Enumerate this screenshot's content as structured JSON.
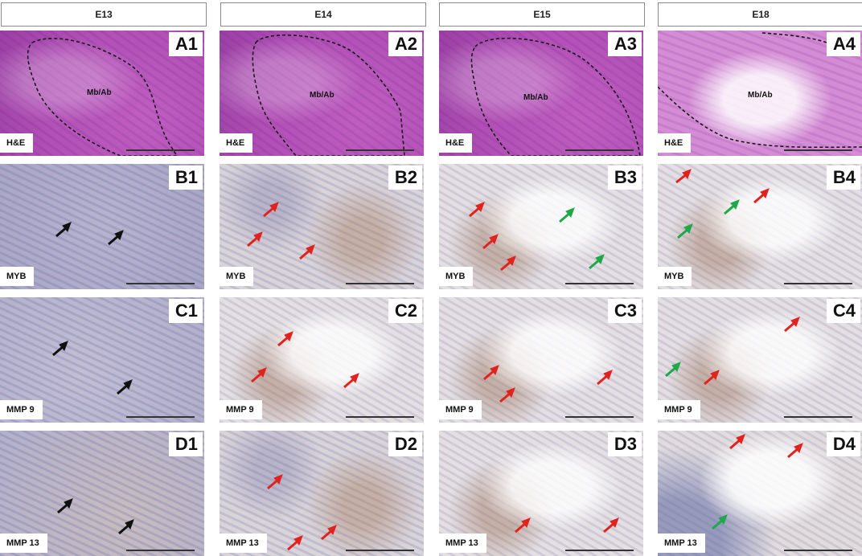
{
  "columns": [
    "E13",
    "E14",
    "E15",
    "E18"
  ],
  "rows": [
    {
      "stain": "H&E",
      "panels": [
        "A1",
        "A2",
        "A3",
        "A4"
      ]
    },
    {
      "stain": "MYB",
      "panels": [
        "B1",
        "B2",
        "B3",
        "B4"
      ]
    },
    {
      "stain": "MMP 9",
      "panels": [
        "C1",
        "C2",
        "C3",
        "C4"
      ]
    },
    {
      "stain": "MMP 13",
      "panels": [
        "D1",
        "D2",
        "D3",
        "D4"
      ]
    }
  ],
  "region_label": "Mb/Ab",
  "colors": {
    "black_arrow": "#111111",
    "red_arrow": "#e0231e",
    "green_arrow": "#1fa84a",
    "dashed_outline": "#111111"
  }
}
